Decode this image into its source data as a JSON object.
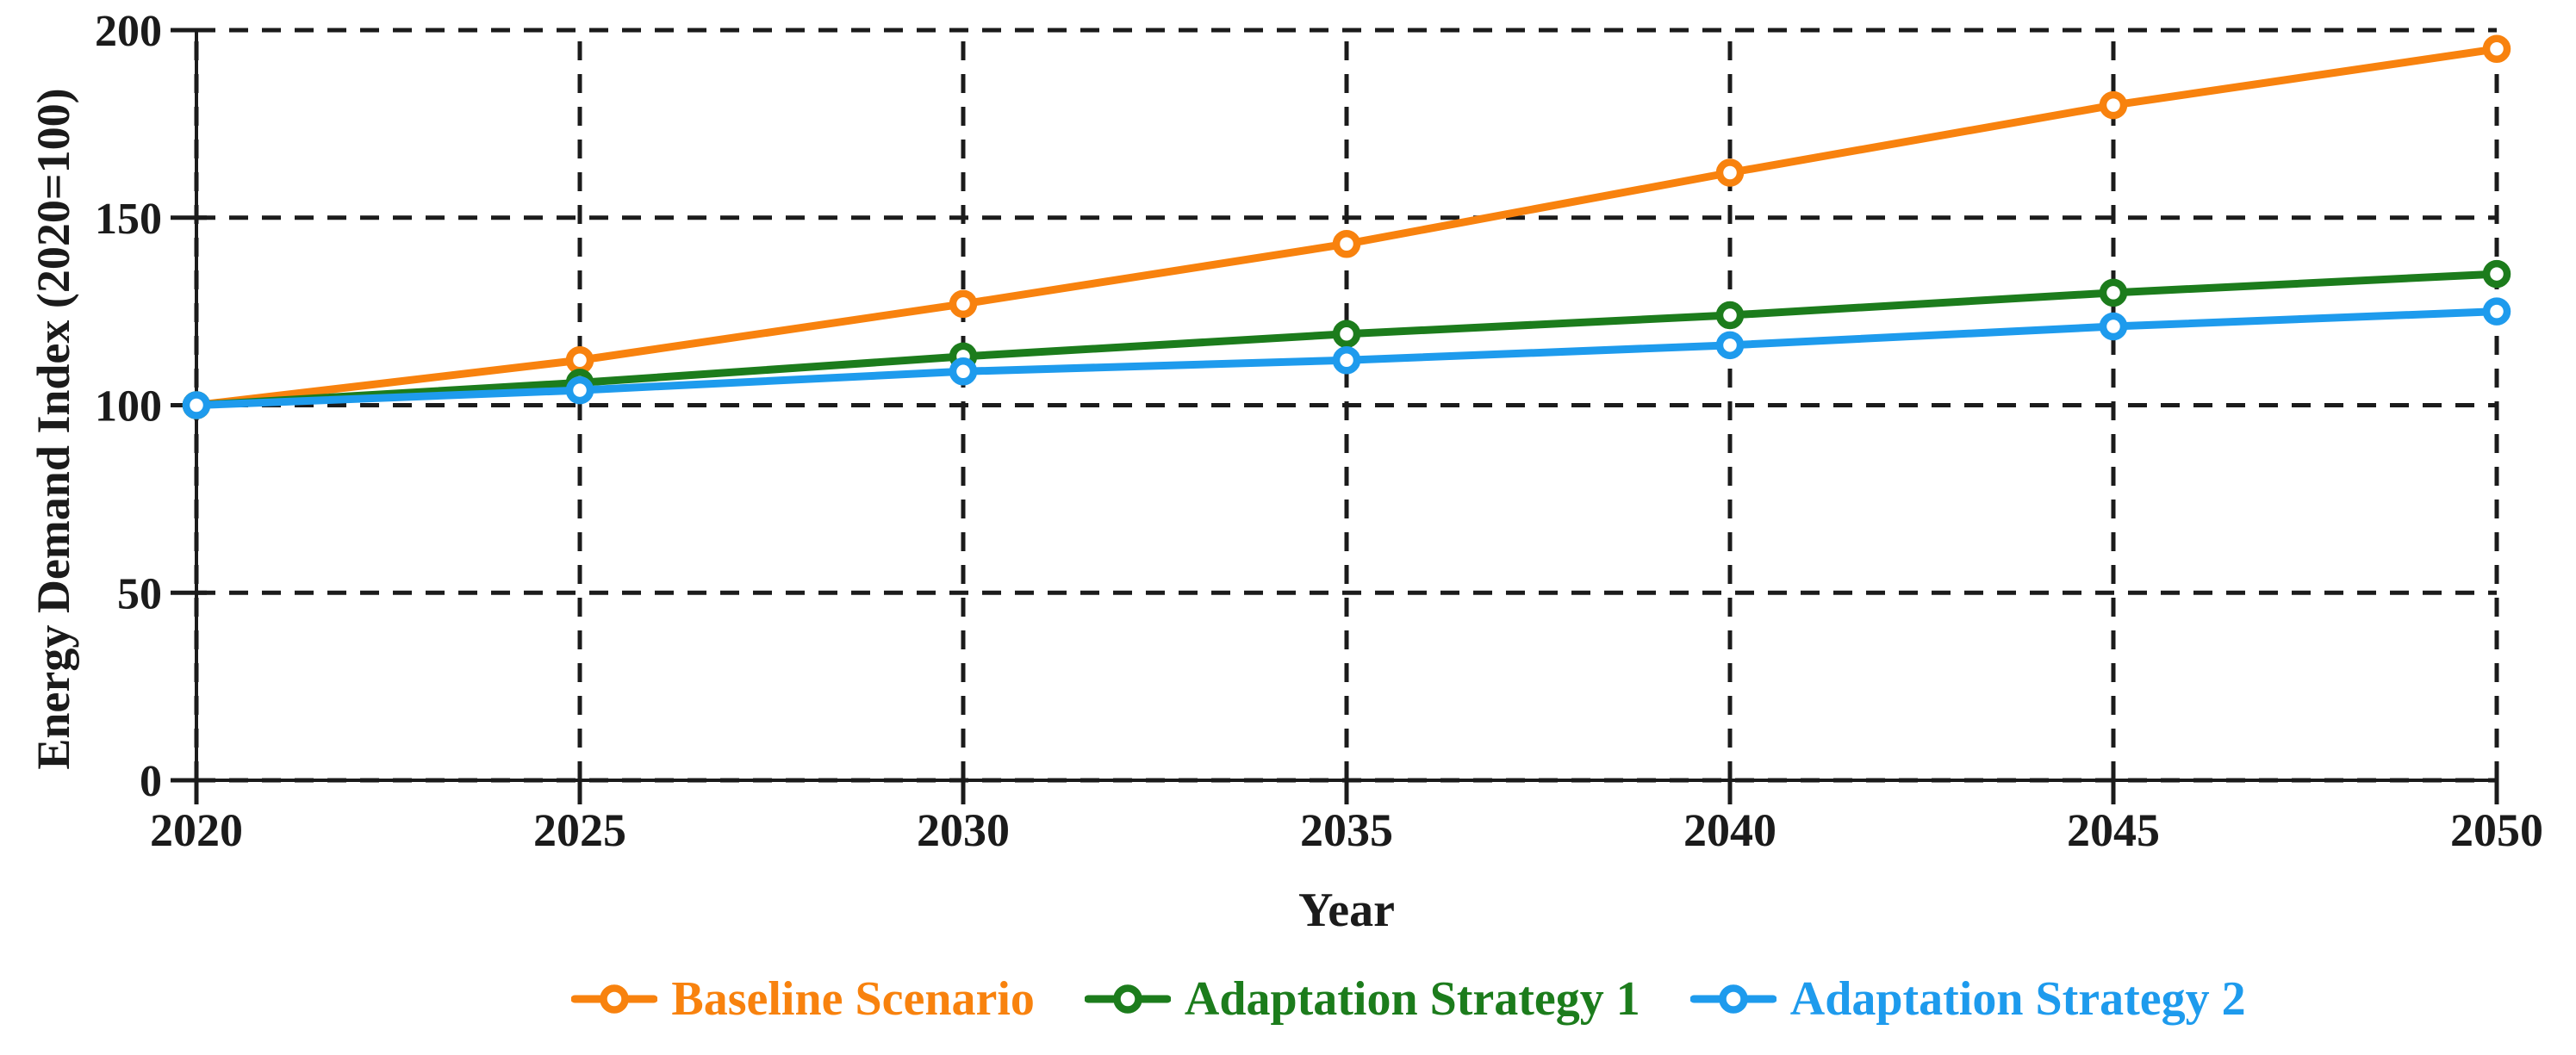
{
  "chart_data": {
    "type": "line",
    "title": "",
    "xlabel": "Year",
    "ylabel": "Energy Demand Index (2020=100)",
    "x": [
      2020,
      2025,
      2030,
      2035,
      2040,
      2045,
      2050
    ],
    "xticks": [
      2020,
      2025,
      2030,
      2035,
      2040,
      2045,
      2050
    ],
    "xlim": [
      2020,
      2050
    ],
    "ylim": [
      0,
      200
    ],
    "yticks": [
      0,
      50,
      100,
      150,
      200
    ],
    "grid": {
      "on": true,
      "style": "dashed",
      "color": "#1b1b1b"
    },
    "axis_color": "#1b1b1b",
    "marker": "open-circle",
    "legend_position": "bottom",
    "series": [
      {
        "name": "Baseline Scenario",
        "color": "#F8820E",
        "values": [
          100,
          112,
          127,
          143,
          162,
          180,
          195
        ]
      },
      {
        "name": "Adaptation Strategy 1",
        "color": "#1C7C1C",
        "values": [
          100,
          106,
          113,
          119,
          124,
          130,
          135
        ]
      },
      {
        "name": "Adaptation Strategy 2",
        "color": "#1E9BED",
        "values": [
          100,
          104,
          109,
          112,
          116,
          121,
          125
        ]
      }
    ]
  }
}
